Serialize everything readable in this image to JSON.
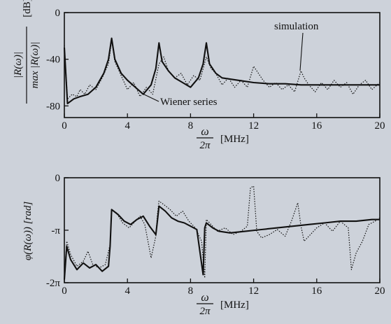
{
  "chart_data": [
    {
      "type": "line",
      "xlabel_frac_num": "ω",
      "xlabel_frac_den": "2π",
      "xlabel_unit": "[MHz]",
      "ylabel_num": "|R(ω)|",
      "ylabel_den": "max |R(ω)|",
      "ylabel_unit": "[dB]",
      "xlim": [
        0,
        20
      ],
      "ylim": [
        -90,
        0
      ],
      "xticks": [
        0,
        4,
        8,
        12,
        16,
        20
      ],
      "xtick_labels": [
        "0",
        "4",
        "8",
        "12",
        "16",
        "20"
      ],
      "yticks": [
        0,
        -40,
        -80
      ],
      "ytick_labels": [
        "0",
        "-40",
        "-80"
      ],
      "grid": false,
      "annotations": [
        "simulation",
        "Wiener series"
      ],
      "series": [
        {
          "name": "Wiener series",
          "style": "solid",
          "x": [
            0,
            0.2,
            0.6,
            1.0,
            1.5,
            2.0,
            2.5,
            2.8,
            3.0,
            3.2,
            3.6,
            4.0,
            4.5,
            5.0,
            5.5,
            5.8,
            6.0,
            6.2,
            6.6,
            7.0,
            7.5,
            8.0,
            8.5,
            8.8,
            9.0,
            9.2,
            9.6,
            10.0,
            11.0,
            12.0,
            13.0,
            14.0,
            15.0,
            16.0,
            17.0,
            18.0,
            19.0,
            20.0
          ],
          "y": [
            -30,
            -78,
            -74,
            -72,
            -70,
            -64,
            -52,
            -40,
            -22,
            -40,
            -52,
            -58,
            -64,
            -70,
            -62,
            -48,
            -26,
            -42,
            -50,
            -56,
            -60,
            -64,
            -56,
            -44,
            -26,
            -44,
            -52,
            -56,
            -58,
            -60,
            -61,
            -61,
            -62,
            -62,
            -62,
            -62,
            -62,
            -62
          ]
        },
        {
          "name": "simulation",
          "style": "dotted",
          "x": [
            0,
            0.2,
            0.5,
            0.8,
            1.0,
            1.3,
            1.6,
            2.0,
            2.4,
            2.8,
            3.0,
            3.2,
            3.6,
            4.0,
            4.4,
            4.8,
            5.2,
            5.6,
            6.0,
            6.3,
            6.6,
            7.0,
            7.4,
            7.8,
            8.2,
            8.6,
            9.0,
            9.3,
            9.6,
            10.0,
            10.4,
            10.8,
            11.2,
            11.6,
            12.0,
            12.3,
            12.6,
            13.0,
            13.4,
            13.8,
            14.2,
            14.6,
            15.0,
            15.2,
            15.5,
            15.9,
            16.3,
            16.7,
            17.1,
            17.5,
            17.9,
            18.3,
            18.7,
            19.1,
            19.5,
            20.0
          ],
          "y": [
            -28,
            -74,
            -70,
            -72,
            -66,
            -70,
            -62,
            -66,
            -56,
            -44,
            -24,
            -42,
            -54,
            -66,
            -60,
            -72,
            -64,
            -70,
            -44,
            -38,
            -50,
            -56,
            -52,
            -62,
            -54,
            -58,
            -38,
            -48,
            -52,
            -62,
            -56,
            -64,
            -58,
            -64,
            -46,
            -52,
            -58,
            -64,
            -60,
            -66,
            -62,
            -68,
            -50,
            -56,
            -62,
            -68,
            -60,
            -66,
            -58,
            -64,
            -60,
            -70,
            -62,
            -58,
            -66,
            -60
          ]
        }
      ]
    },
    {
      "type": "line",
      "xlabel_frac_num": "ω",
      "xlabel_frac_den": "2π",
      "xlabel_unit": "[MHz]",
      "ylabel": "φ(R(ω)) [rad]",
      "xlim": [
        0,
        20
      ],
      "ylim": [
        -6.2832,
        0
      ],
      "xticks": [
        0,
        4,
        8,
        12,
        16,
        20
      ],
      "xtick_labels": [
        "0",
        "4",
        "8",
        "12",
        "16",
        "20"
      ],
      "yticks": [
        0,
        -3.1416,
        -6.2832
      ],
      "ytick_labels": [
        "0",
        "-π",
        "-2π"
      ],
      "grid": false,
      "series": [
        {
          "name": "Wiener series",
          "style": "solid",
          "x": [
            0,
            0.15,
            0.4,
            0.8,
            1.2,
            1.6,
            2.0,
            2.4,
            2.8,
            2.9,
            3.0,
            3.4,
            3.8,
            4.2,
            4.6,
            5.0,
            5.4,
            5.8,
            5.9,
            6.0,
            6.4,
            6.8,
            7.2,
            7.6,
            8.0,
            8.4,
            8.8,
            8.9,
            9.0,
            9.4,
            9.8,
            10.5,
            11.5,
            12.5,
            13.5,
            14.5,
            15.5,
            16.5,
            17.5,
            18.5,
            19.5,
            20.0
          ],
          "y": [
            -6.1,
            -4.1,
            -4.9,
            -5.5,
            -5.1,
            -5.4,
            -5.2,
            -5.6,
            -5.3,
            -4.1,
            -1.9,
            -2.2,
            -2.6,
            -2.8,
            -2.5,
            -2.3,
            -2.9,
            -3.4,
            -2.6,
            -1.7,
            -2.0,
            -2.4,
            -2.6,
            -2.7,
            -2.9,
            -3.1,
            -5.8,
            -3.0,
            -2.7,
            -3.0,
            -3.2,
            -3.3,
            -3.2,
            -3.1,
            -3.0,
            -2.9,
            -2.8,
            -2.7,
            -2.6,
            -2.6,
            -2.5,
            -2.5
          ]
        },
        {
          "name": "simulation",
          "style": "dotted",
          "x": [
            0,
            0.15,
            0.4,
            0.8,
            1.2,
            1.5,
            1.8,
            2.2,
            2.6,
            2.9,
            3.0,
            3.3,
            3.7,
            4.1,
            4.5,
            4.8,
            5.1,
            5.5,
            5.8,
            5.9,
            6.0,
            6.3,
            6.7,
            7.1,
            7.5,
            7.9,
            8.3,
            8.7,
            8.9,
            9.0,
            9.3,
            9.7,
            10.2,
            10.7,
            11.2,
            11.6,
            11.8,
            12.0,
            12.2,
            12.5,
            13.0,
            13.5,
            14.0,
            14.4,
            14.8,
            15.0,
            15.2,
            15.6,
            16.0,
            16.5,
            17.0,
            17.5,
            18.0,
            18.2,
            18.5,
            18.9,
            19.3,
            19.7,
            20.0
          ],
          "y": [
            -6.1,
            -3.8,
            -4.6,
            -5.3,
            -5.0,
            -4.4,
            -5.2,
            -5.4,
            -5.2,
            -4.0,
            -1.9,
            -2.1,
            -2.7,
            -3.0,
            -2.6,
            -2.3,
            -2.8,
            -4.8,
            -3.5,
            -2.2,
            -1.4,
            -1.6,
            -1.9,
            -2.3,
            -2.0,
            -2.6,
            -3.0,
            -3.8,
            -6.0,
            -2.5,
            -2.8,
            -3.2,
            -3.0,
            -3.4,
            -3.2,
            -2.9,
            -0.6,
            -0.5,
            -3.2,
            -3.6,
            -3.4,
            -3.1,
            -3.5,
            -2.6,
            -1.5,
            -2.9,
            -3.8,
            -3.4,
            -3.0,
            -2.7,
            -3.2,
            -2.6,
            -3.0,
            -5.5,
            -4.5,
            -3.8,
            -2.8,
            -2.6,
            -2.4
          ]
        }
      ]
    }
  ]
}
